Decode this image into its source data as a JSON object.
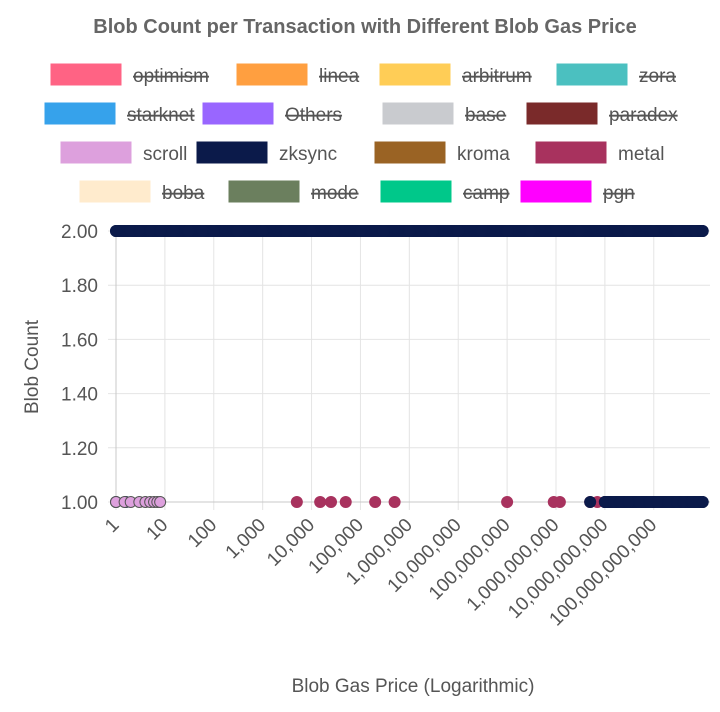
{
  "chart_data": {
    "type": "scatter",
    "title": "Blob Count per Transaction with Different Blob Gas Price",
    "xlabel": "Blob Gas Price (Logarithmic)",
    "ylabel": "Blob Count",
    "x_scale": "log",
    "xlim": [
      1,
      1000000000000
    ],
    "ylim": [
      1,
      2
    ],
    "x_ticks": [
      "1",
      "10",
      "100",
      "1,000",
      "10,000",
      "100,000",
      "1,000,000",
      "10,000,000",
      "100,000,000",
      "1,000,000,000",
      "10,000,000,000",
      "100,000,000,000"
    ],
    "y_ticks": [
      "1.00",
      "1.20",
      "1.40",
      "1.60",
      "1.80",
      "2.00"
    ],
    "grid": true,
    "legend_position": "top",
    "legend": [
      {
        "name": "optimism",
        "color": "#ff6384",
        "hidden": true
      },
      {
        "name": "linea",
        "color": "#ff9f40",
        "hidden": true
      },
      {
        "name": "arbitrum",
        "color": "#ffcd56",
        "hidden": true
      },
      {
        "name": "zora",
        "color": "#4bc0c0",
        "hidden": true
      },
      {
        "name": "starknet",
        "color": "#36a2eb",
        "hidden": true
      },
      {
        "name": "Others",
        "color": "#9966ff",
        "hidden": true
      },
      {
        "name": "base",
        "color": "#c9cbcf",
        "hidden": true
      },
      {
        "name": "paradex",
        "color": "#7a2a2a",
        "hidden": true
      },
      {
        "name": "scroll",
        "color": "#dda0dd",
        "hidden": false
      },
      {
        "name": "zksync",
        "color": "#0b1a4a",
        "hidden": false
      },
      {
        "name": "kroma",
        "color": "#9a6324",
        "hidden": false
      },
      {
        "name": "metal",
        "color": "#a8325e",
        "hidden": false
      },
      {
        "name": "boba",
        "color": "#ffebcd",
        "hidden": true
      },
      {
        "name": "mode",
        "color": "#6b7f5e",
        "hidden": true
      },
      {
        "name": "camp",
        "color": "#00c88a",
        "hidden": true
      },
      {
        "name": "pgn",
        "color": "#ff00ff",
        "hidden": true
      }
    ],
    "series": [
      {
        "name": "scroll",
        "points": [
          [
            1,
            1
          ],
          [
            1.5,
            1
          ],
          [
            2,
            1
          ],
          [
            3,
            1
          ],
          [
            4,
            1
          ],
          [
            5,
            1
          ],
          [
            6,
            1
          ],
          [
            7,
            1
          ],
          [
            8,
            1
          ]
        ]
      },
      {
        "name": "zksync",
        "points": [
          [
            1,
            2
          ],
          [
            1,
            1
          ],
          [
            1.6,
            1
          ],
          [
            5000000000,
            1
          ],
          [
            10000000000,
            1
          ],
          [
            15000000000,
            1
          ],
          [
            20000000000,
            1
          ],
          [
            30000000000,
            1
          ],
          [
            50000000000,
            1
          ],
          [
            80000000000,
            1
          ],
          [
            120000000000,
            1
          ],
          [
            200000000000,
            1
          ],
          [
            300000000000,
            1
          ],
          [
            400000000000,
            1
          ],
          [
            600000000000,
            1
          ],
          [
            800000000000,
            1
          ],
          [
            1000000000000,
            1
          ],
          [
            2,
            2
          ],
          [
            3,
            2
          ],
          [
            5,
            2
          ],
          [
            8,
            2
          ],
          [
            15,
            2
          ],
          [
            30,
            2
          ],
          [
            60,
            2
          ],
          [
            100,
            2
          ],
          [
            300,
            2
          ],
          [
            1000,
            2
          ],
          [
            3000,
            2
          ],
          [
            10000,
            2
          ],
          [
            30000,
            2
          ],
          [
            100000,
            2
          ],
          [
            300000,
            2
          ],
          [
            1000000,
            2
          ],
          [
            3000000,
            2
          ],
          [
            10000000,
            2
          ],
          [
            30000000,
            2
          ],
          [
            100000000,
            2
          ],
          [
            300000000,
            2
          ],
          [
            1000000000,
            2
          ],
          [
            3000000000,
            2
          ],
          [
            10000000000,
            2
          ],
          [
            30000000000,
            2
          ],
          [
            100000000000,
            2
          ],
          [
            300000000000,
            2
          ],
          [
            700000000000,
            2
          ],
          [
            1000000000000,
            2
          ]
        ]
      },
      {
        "name": "kroma",
        "points": []
      },
      {
        "name": "metal",
        "points": [
          [
            5000,
            1
          ],
          [
            15000,
            1
          ],
          [
            25000,
            1
          ],
          [
            50000,
            1
          ],
          [
            200000,
            1
          ],
          [
            500000,
            1
          ],
          [
            100000000,
            1
          ],
          [
            900000000,
            1
          ],
          [
            1200000000,
            1
          ],
          [
            5000000000,
            1
          ],
          [
            7000000000,
            1
          ],
          [
            10000000000,
            1
          ],
          [
            15000000000,
            1
          ],
          [
            20000000000,
            1
          ],
          [
            25000000000,
            1
          ],
          [
            30000000000,
            1
          ],
          [
            40000000000,
            1
          ]
        ]
      }
    ]
  }
}
